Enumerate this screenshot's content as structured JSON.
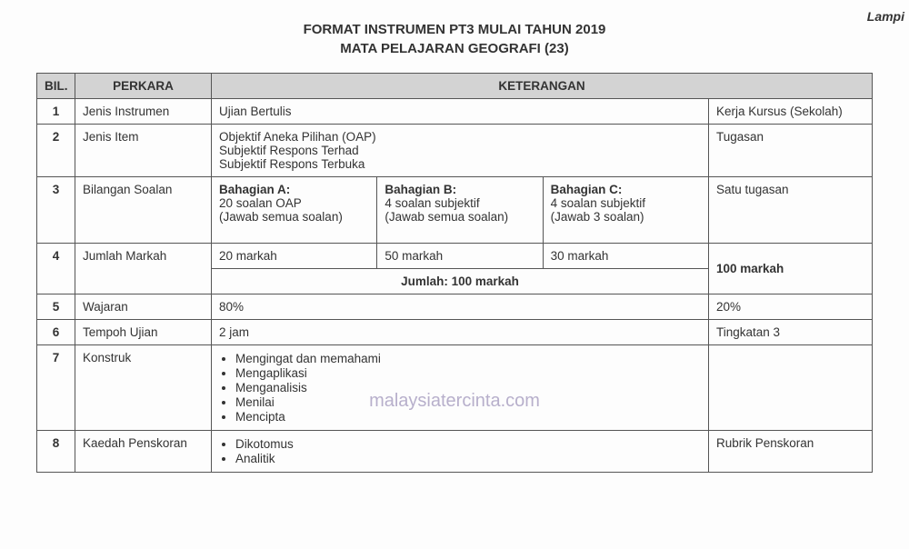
{
  "corner_text": "Lampi",
  "title_line1": "FORMAT INSTRUMEN PT3 MULAI TAHUN 2019",
  "title_line2": "MATA PELAJARAN GEOGRAFI (23)",
  "watermark": "malaysiatercinta.com",
  "headers": {
    "bil": "BIL.",
    "perkara": "PERKARA",
    "keterangan": "KETERANGAN"
  },
  "rows": {
    "r1": {
      "bil": "1",
      "perkara": "Jenis Instrumen",
      "k1": "Ujian Bertulis",
      "k4": "Kerja Kursus (Sekolah)"
    },
    "r2": {
      "bil": "2",
      "perkara": "Jenis Item",
      "k1_l1": "Objektif Aneka Pilihan (OAP)",
      "k1_l2": "Subjektif Respons Terhad",
      "k1_l3": "Subjektif Respons Terbuka",
      "k4": "Tugasan"
    },
    "r3": {
      "bil": "3",
      "perkara": "Bilangan Soalan",
      "a_h": "Bahagian A:",
      "a_l1": "20 soalan OAP",
      "a_l2": "(Jawab semua soalan)",
      "b_h": "Bahagian B:",
      "b_l1": "4 soalan subjektif",
      "b_l2": "(Jawab semua soalan)",
      "c_h": "Bahagian C:",
      "c_l1": "4 soalan subjektif",
      "c_l2": "(Jawab 3 soalan)",
      "k4": "Satu tugasan"
    },
    "r4": {
      "bil": "4",
      "perkara": "Jumlah Markah",
      "a": "20 markah",
      "b": "50 markah",
      "c": "30 markah",
      "k4": "100 markah",
      "jumlah": "Jumlah: 100 markah"
    },
    "r5": {
      "bil": "5",
      "perkara": "Wajaran",
      "k1": "80%",
      "k4": "20%"
    },
    "r6": {
      "bil": "6",
      "perkara": "Tempoh Ujian",
      "k1": "2 jam",
      "k4": "Tingkatan 3"
    },
    "r7": {
      "bil": "7",
      "perkara": "Konstruk",
      "items": {
        "i0": "Mengingat dan memahami",
        "i1": "Mengaplikasi",
        "i2": "Menganalisis",
        "i3": "Menilai",
        "i4": "Mencipta"
      }
    },
    "r8": {
      "bil": "8",
      "perkara": "Kaedah Penskoran",
      "items": {
        "i0": "Dikotomus",
        "i1": "Analitik"
      },
      "k4": "Rubrik Penskoran"
    }
  }
}
